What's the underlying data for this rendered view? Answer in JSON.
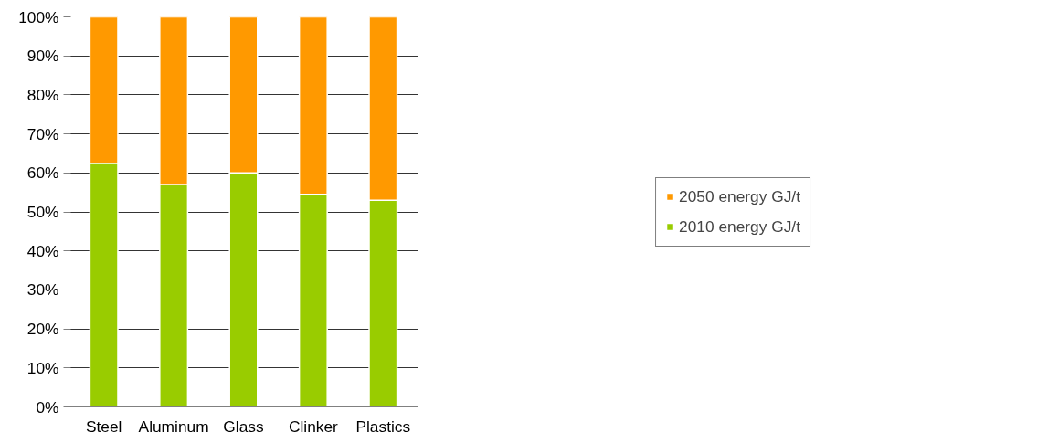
{
  "chart_data": {
    "type": "bar",
    "stacked": true,
    "categories": [
      "Steel",
      "Aluminum",
      "Glass",
      "Clinker",
      "Plastics"
    ],
    "series": [
      {
        "name": "2010 energy GJ/t",
        "color": "#99cc00",
        "values": [
          62.5,
          57,
          60,
          54.5,
          53
        ]
      },
      {
        "name": "2050 energy GJ/t",
        "color": "#ff9900",
        "values": [
          37.5,
          43,
          40,
          45.5,
          47
        ]
      }
    ],
    "ylim": [
      0,
      100
    ],
    "yticks": [
      {
        "value": 0,
        "label": "0%"
      },
      {
        "value": 10,
        "label": "10%"
      },
      {
        "value": 20,
        "label": "20%"
      },
      {
        "value": 30,
        "label": "30%"
      },
      {
        "value": 40,
        "label": "40%"
      },
      {
        "value": 50,
        "label": "50%"
      },
      {
        "value": 60,
        "label": "60%"
      },
      {
        "value": 70,
        "label": "70%"
      },
      {
        "value": 80,
        "label": "80%"
      },
      {
        "value": 90,
        "label": "90%"
      },
      {
        "value": 100,
        "label": "100%"
      }
    ],
    "grid": "y",
    "legend": "right"
  }
}
